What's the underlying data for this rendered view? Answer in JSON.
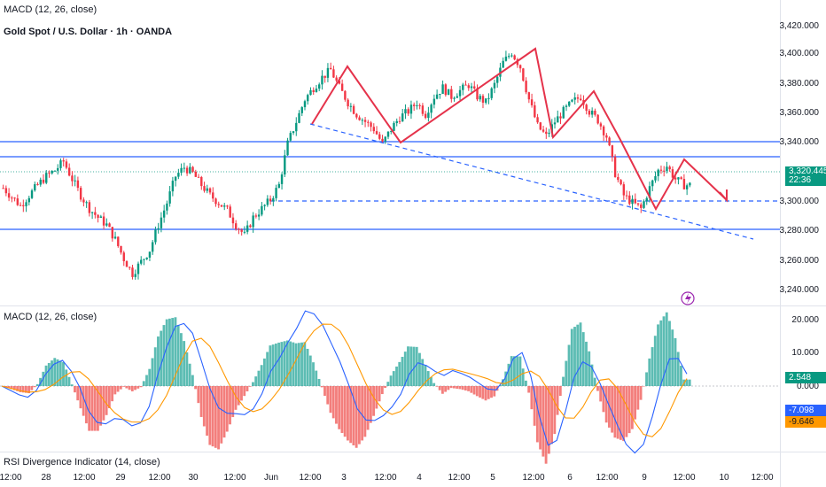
{
  "top_label": "MACD (12, 26, close)",
  "symbol_title": "Gold Spot / U.S. Dollar · 1h · OANDA",
  "price_ticks": [
    "3,420.000",
    "3,400.000",
    "3,380.000",
    "3,360.000",
    "3,340.000",
    "3,300.000",
    "3,280.000",
    "3,260.000",
    "3,240.000"
  ],
  "last_price": "3,320.445",
  "countdown": "22:36",
  "macd_title": "MACD (12, 26, close)",
  "macd_ticks": [
    "20.000",
    "10.000",
    "0.000"
  ],
  "macd_hist_value": "2.548",
  "macd_line_value": "-7.098",
  "signal_value": "-9.646",
  "rsi_title": "RSI Divergence Indicator (14, close)",
  "x_ticks": [
    "12:00",
    "28",
    "12:00",
    "29",
    "12:00",
    "30",
    "12:00",
    "Jun",
    "12:00",
    "3",
    "12:00",
    "4",
    "12:00",
    "5",
    "12:00",
    "6",
    "12:00",
    "9",
    "12:00",
    "10",
    "12:00"
  ],
  "colors": {
    "up": "#089981",
    "down": "#f23645",
    "level": "#2962ff",
    "pattern": "#e5334b",
    "macd": "#2962ff",
    "signal": "#ff9800"
  },
  "chart_data": {
    "type": "candlestick",
    "instrument": "Gold Spot / U.S. Dollar",
    "interval": "1h",
    "ylim": [
      3240,
      3420
    ],
    "horizontal_levels": [
      3340,
      3330,
      3280
    ],
    "dashed_levels": [
      3300
    ],
    "close_path": [
      3310,
      3304,
      3298,
      3305,
      3312,
      3318,
      3322,
      3328,
      3316,
      3305,
      3296,
      3290,
      3285,
      3275,
      3262,
      3252,
      3260,
      3268,
      3285,
      3300,
      3318,
      3324,
      3320,
      3312,
      3305,
      3300,
      3295,
      3285,
      3278,
      3290,
      3296,
      3302,
      3312,
      3340,
      3355,
      3370,
      3378,
      3385,
      3390,
      3378,
      3368,
      3360,
      3355,
      3350,
      3340,
      3350,
      3358,
      3362,
      3368,
      3360,
      3372,
      3378,
      3372,
      3376,
      3380,
      3372,
      3368,
      3380,
      3395,
      3402,
      3392,
      3370,
      3352,
      3345,
      3355,
      3362,
      3368,
      3372,
      3362,
      3356,
      3345,
      3320,
      3305,
      3300,
      3296,
      3310,
      3322,
      3325,
      3316,
      3312
    ],
    "pattern_points": [
      [
        3355,
        3390
      ],
      [
        3340,
        3340
      ],
      [
        3403,
        3372
      ],
      [
        3340,
        3296
      ],
      [
        3328,
        3300
      ]
    ],
    "macd": {
      "hist_last": 2.548,
      "macd_last": -7.098,
      "signal_last": -9.646,
      "ylim": [
        -12,
        20
      ]
    }
  }
}
